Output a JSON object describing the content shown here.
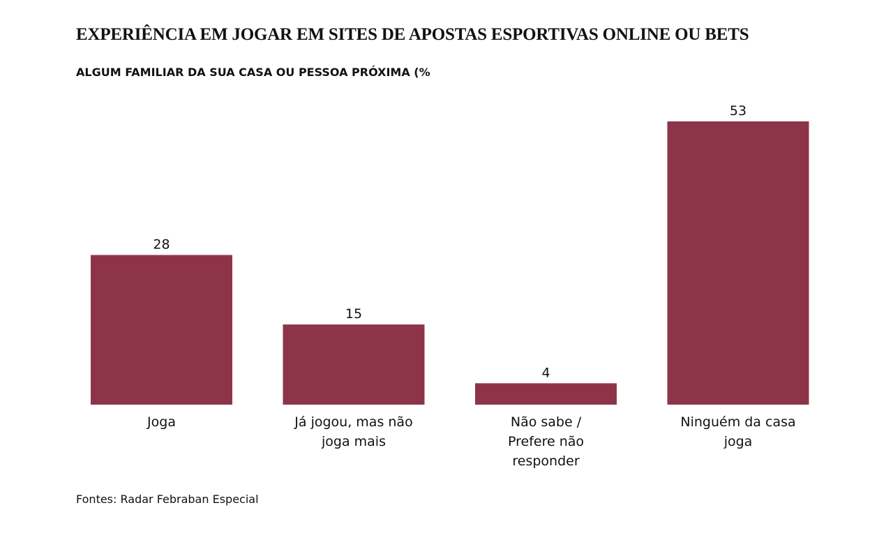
{
  "chart_data": {
    "type": "bar",
    "title": "EXPERIÊNCIA EM JOGAR EM SITES DE APOSTAS ESPORTIVAS ONLINE OU BETS",
    "subtitle": "ALGUM FAMILIAR DA SUA CASA OU PESSOA PRÓXIMA (%",
    "categories": [
      [
        "Joga"
      ],
      [
        "Já jogou, mas não",
        "joga mais"
      ],
      [
        "Não sabe /",
        "Prefere não",
        "responder"
      ],
      [
        "Ninguém da casa",
        "joga"
      ]
    ],
    "values": [
      28,
      15,
      4,
      53
    ],
    "xlabel": "",
    "ylabel": "",
    "ylim": [
      0,
      53
    ],
    "grid": false,
    "data_labels": true,
    "bar_color": "#8E3449",
    "source": "Fontes: Radar Febraban Especial"
  }
}
